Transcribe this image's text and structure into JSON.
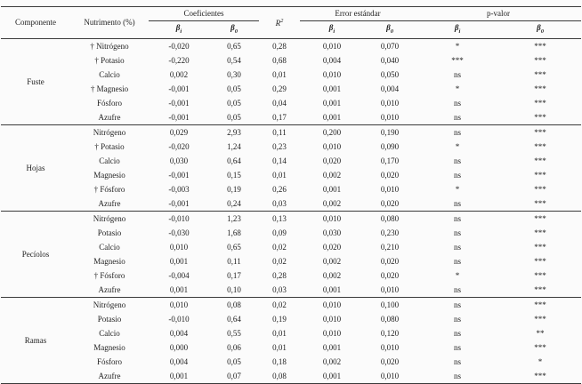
{
  "table": {
    "headers": {
      "componente": "Componente",
      "nutrimento": "Nutrimento (%)",
      "coeficientes": "Coeficientes",
      "r2": {
        "base": "R",
        "sup": "2"
      },
      "error_estandar": "Error estándar",
      "p_valor": "p-valor",
      "beta": {
        "base": "β",
        "sub_i": "i",
        "sub_0": "0"
      }
    },
    "groups": [
      {
        "componente": "Fuste",
        "rows": [
          {
            "nutrimento": "† Nitrógeno",
            "coef_bi": "-0,020",
            "coef_b0": "0,65",
            "r2": "0,28",
            "se_bi": "0,010",
            "se_b0": "0,070",
            "p_bi": "*",
            "p_b0": "***"
          },
          {
            "nutrimento": "† Potasio",
            "coef_bi": "-0,220",
            "coef_b0": "0,54",
            "r2": "0,68",
            "se_bi": "0,004",
            "se_b0": "0,040",
            "p_bi": "***",
            "p_b0": "***"
          },
          {
            "nutrimento": "Calcio",
            "coef_bi": "0,002",
            "coef_b0": "0,30",
            "r2": "0,01",
            "se_bi": "0,010",
            "se_b0": "0,050",
            "p_bi": "ns",
            "p_b0": "***"
          },
          {
            "nutrimento": "† Magnesio",
            "coef_bi": "-0,001",
            "coef_b0": "0,05",
            "r2": "0,29",
            "se_bi": "0,001",
            "se_b0": "0,004",
            "p_bi": "*",
            "p_b0": "***"
          },
          {
            "nutrimento": "Fósforo",
            "coef_bi": "-0,001",
            "coef_b0": "0,05",
            "r2": "0,04",
            "se_bi": "0,001",
            "se_b0": "0,010",
            "p_bi": "ns",
            "p_b0": "***"
          },
          {
            "nutrimento": "Azufre",
            "coef_bi": "-0,001",
            "coef_b0": "0,05",
            "r2": "0,17",
            "se_bi": "0,001",
            "se_b0": "0,010",
            "p_bi": "ns",
            "p_b0": "***"
          }
        ]
      },
      {
        "componente": "Hojas",
        "rows": [
          {
            "nutrimento": "Nitrógeno",
            "coef_bi": "0,029",
            "coef_b0": "2,93",
            "r2": "0,11",
            "se_bi": "0,200",
            "se_b0": "0,190",
            "p_bi": "ns",
            "p_b0": "***"
          },
          {
            "nutrimento": "† Potasio",
            "coef_bi": "-0,020",
            "coef_b0": "1,24",
            "r2": "0,23",
            "se_bi": "0,010",
            "se_b0": "0,090",
            "p_bi": "*",
            "p_b0": "***"
          },
          {
            "nutrimento": "Calcio",
            "coef_bi": "0,030",
            "coef_b0": "0,64",
            "r2": "0,14",
            "se_bi": "0,020",
            "se_b0": "0,170",
            "p_bi": "ns",
            "p_b0": "***"
          },
          {
            "nutrimento": "Magnesio",
            "coef_bi": "-0,001",
            "coef_b0": "0,15",
            "r2": "0,01",
            "se_bi": "0,002",
            "se_b0": "0,020",
            "p_bi": "ns",
            "p_b0": "***"
          },
          {
            "nutrimento": "† Fósforo",
            "coef_bi": "-0,003",
            "coef_b0": "0,19",
            "r2": "0,26",
            "se_bi": "0,001",
            "se_b0": "0,010",
            "p_bi": "*",
            "p_b0": "***"
          },
          {
            "nutrimento": "Azufre",
            "coef_bi": "-0,001",
            "coef_b0": "0,24",
            "r2": "0,03",
            "se_bi": "0,002",
            "se_b0": "0,020",
            "p_bi": "ns",
            "p_b0": "***"
          }
        ]
      },
      {
        "componente": "Pecíolos",
        "rows": [
          {
            "nutrimento": "Nitrógeno",
            "coef_bi": "-0,010",
            "coef_b0": "1,23",
            "r2": "0,13",
            "se_bi": "0,010",
            "se_b0": "0,080",
            "p_bi": "ns",
            "p_b0": "***"
          },
          {
            "nutrimento": "Potasio",
            "coef_bi": "-0,030",
            "coef_b0": "1,68",
            "r2": "0,09",
            "se_bi": "0,030",
            "se_b0": "0,230",
            "p_bi": "ns",
            "p_b0": "***"
          },
          {
            "nutrimento": "Calcio",
            "coef_bi": "0,010",
            "coef_b0": "0,65",
            "r2": "0,02",
            "se_bi": "0,020",
            "se_b0": "0,210",
            "p_bi": "ns",
            "p_b0": "***"
          },
          {
            "nutrimento": "Magnesio",
            "coef_bi": "0,001",
            "coef_b0": "0,11",
            "r2": "0,02",
            "se_bi": "0,002",
            "se_b0": "0,020",
            "p_bi": "ns",
            "p_b0": "***"
          },
          {
            "nutrimento": "† Fósforo",
            "coef_bi": "-0,004",
            "coef_b0": "0,17",
            "r2": "0,28",
            "se_bi": "0,002",
            "se_b0": "0,020",
            "p_bi": "*",
            "p_b0": "***"
          },
          {
            "nutrimento": "Azufre",
            "coef_bi": "0,001",
            "coef_b0": "0,10",
            "r2": "0,03",
            "se_bi": "0,001",
            "se_b0": "0,010",
            "p_bi": "ns",
            "p_b0": "***"
          }
        ]
      },
      {
        "componente": "Ramas",
        "rows": [
          {
            "nutrimento": "Nitrógeno",
            "coef_bi": "0,010",
            "coef_b0": "0,08",
            "r2": "0,02",
            "se_bi": "0,010",
            "se_b0": "0,100",
            "p_bi": "ns",
            "p_b0": "***"
          },
          {
            "nutrimento": "Potasio",
            "coef_bi": "-0,010",
            "coef_b0": "0,64",
            "r2": "0,19",
            "se_bi": "0,010",
            "se_b0": "0,080",
            "p_bi": "ns",
            "p_b0": "***"
          },
          {
            "nutrimento": "Calcio",
            "coef_bi": "0,004",
            "coef_b0": "0,55",
            "r2": "0,01",
            "se_bi": "0,010",
            "se_b0": "0,120",
            "p_bi": "ns",
            "p_b0": "**"
          },
          {
            "nutrimento": "Magnesio",
            "coef_bi": "0,000",
            "coef_b0": "0,06",
            "r2": "0,01",
            "se_bi": "0,001",
            "se_b0": "0,010",
            "p_bi": "ns",
            "p_b0": "***"
          },
          {
            "nutrimento": "Fósforo",
            "coef_bi": "0,004",
            "coef_b0": "0,05",
            "r2": "0,18",
            "se_bi": "0,002",
            "se_b0": "0,020",
            "p_bi": "ns",
            "p_b0": "*"
          },
          {
            "nutrimento": "Azufre",
            "coef_bi": "0,001",
            "coef_b0": "0,07",
            "r2": "0,08",
            "se_bi": "0,001",
            "se_b0": "0,010",
            "p_bi": "ns",
            "p_b0": "***"
          }
        ]
      }
    ]
  }
}
